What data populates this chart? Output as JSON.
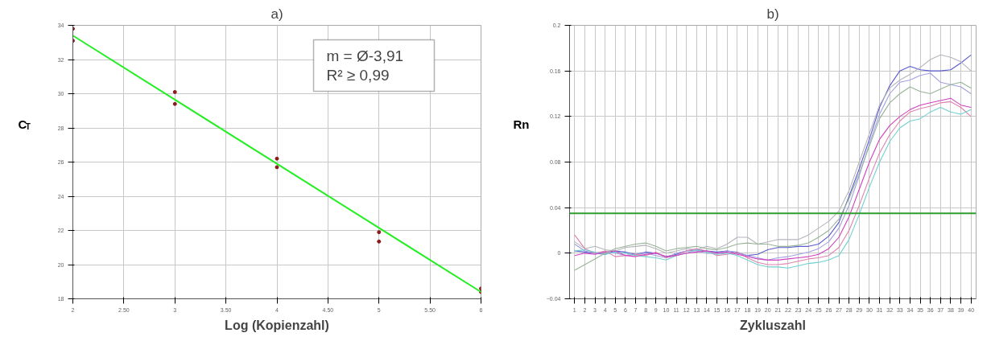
{
  "chart_data": [
    {
      "type": "scatter",
      "title": "a)",
      "xlabel": "Log (Kopienzahl)",
      "ylabel": "C$_{T}$",
      "xlim": [
        2,
        6
      ],
      "ylim": [
        18,
        34
      ],
      "xticks": [
        2,
        {
          "value": 2.5,
          "label": "2.50"
        },
        3,
        {
          "value": 3.5,
          "label": "3.50"
        },
        4,
        {
          "value": 4.5,
          "label": "4.50"
        },
        5,
        {
          "value": 5.5,
          "label": "5.50"
        },
        6
      ],
      "yticks": [
        18,
        20,
        22,
        24,
        26,
        28,
        30,
        32,
        34
      ],
      "grid": true,
      "marker": "circle",
      "annotations": [
        "m = Ø-3,91",
        "R² ≥ 0,99"
      ],
      "series": [
        {
          "type": "scatter",
          "color": "#8b1a1a",
          "x": [
            2,
            2,
            3,
            3,
            4,
            4,
            5,
            5,
            6,
            6
          ],
          "values": [
            33.8,
            33.1,
            30.1,
            29.4,
            26.2,
            25.7,
            21.9,
            21.35,
            18.6,
            18.4
          ]
        },
        {
          "type": "line",
          "color": "#22ee22",
          "marker": "none",
          "x": [
            2,
            6
          ],
          "values": [
            33.4,
            18.4
          ]
        }
      ]
    },
    {
      "type": "line",
      "title": "b)",
      "xlabel": "Zykluszahl",
      "ylabel": "Rn",
      "xlim": [
        0.5,
        40.5
      ],
      "ylim": [
        -0.04,
        0.2
      ],
      "xticks": [
        1,
        2,
        3,
        4,
        5,
        6,
        7,
        8,
        9,
        10,
        11,
        12,
        13,
        14,
        15,
        16,
        17,
        18,
        19,
        20,
        21,
        22,
        23,
        24,
        25,
        26,
        27,
        28,
        29,
        30,
        31,
        32,
        33,
        34,
        35,
        36,
        37,
        38,
        39,
        40
      ],
      "yticks": [
        -0.04,
        0,
        0.04,
        0.08,
        0.12,
        0.16,
        0.2
      ],
      "grid": true,
      "marker": "none",
      "ref_lines": [
        {
          "axis": "y",
          "value": 0.035,
          "color": "#2e9e2e"
        }
      ],
      "x": [
        1,
        2,
        3,
        4,
        5,
        6,
        7,
        8,
        9,
        10,
        11,
        12,
        13,
        14,
        15,
        16,
        17,
        18,
        19,
        20,
        21,
        22,
        23,
        24,
        25,
        26,
        27,
        28,
        29,
        30,
        31,
        32,
        33,
        34,
        35,
        36,
        37,
        38,
        39,
        40
      ],
      "series": [
        {
          "color": "#5b5bd0",
          "values": [
            0.002,
            0.001,
            0,
            -0.001,
            0.002,
            0.001,
            -0.001,
            0.001,
            0,
            -0.003,
            -0.001,
            0.002,
            0.003,
            0.002,
            0.001,
            0.002,
            0,
            -0.002,
            -0.001,
            0.003,
            0.005,
            0.005,
            0.006,
            0.006,
            0.008,
            0.015,
            0.027,
            0.05,
            0.074,
            0.1,
            0.128,
            0.147,
            0.16,
            0.164,
            0.161,
            0.16,
            0.16,
            0.161,
            0.167,
            0.174
          ]
        },
        {
          "color": "#b4b4bc",
          "values": [
            0.01,
            0.004,
            0.006,
            0.003,
            0.002,
            0.005,
            0.006,
            0.007,
            0.004,
            0,
            0.002,
            0.004,
            0.003,
            0.006,
            0.004,
            0.008,
            0.014,
            0.014,
            0.008,
            0.01,
            0.012,
            0.012,
            0.012,
            0.016,
            0.022,
            0.028,
            0.037,
            0.055,
            0.08,
            0.105,
            0.13,
            0.145,
            0.152,
            0.157,
            0.163,
            0.17,
            0.174,
            0.172,
            0.168,
            0.16
          ]
        },
        {
          "color": "#a0a0e0",
          "values": [
            0.008,
            0.002,
            0,
            0.001,
            0,
            -0.002,
            -0.001,
            0,
            -0.002,
            -0.004,
            0,
            0.002,
            0.002,
            0,
            0,
            0.002,
            0.001,
            -0.002,
            -0.004,
            -0.006,
            -0.004,
            -0.003,
            -0.001,
            0.001,
            0.004,
            0.01,
            0.022,
            0.042,
            0.068,
            0.096,
            0.122,
            0.14,
            0.15,
            0.152,
            0.156,
            0.158,
            0.15,
            0.148,
            0.146,
            0.14
          ]
        },
        {
          "color": "#e080b0",
          "values": [
            0.016,
            0.004,
            0,
            0.002,
            -0.003,
            -0.002,
            -0.001,
            -0.002,
            0.001,
            -0.004,
            -0.002,
            0.002,
            0.004,
            0.002,
            -0.002,
            -0.001,
            0.001,
            -0.004,
            -0.008,
            -0.01,
            -0.01,
            -0.009,
            -0.007,
            -0.005,
            -0.004,
            -0.002,
            0.005,
            0.02,
            0.042,
            0.066,
            0.088,
            0.104,
            0.116,
            0.124,
            0.127,
            0.129,
            0.132,
            0.133,
            0.128,
            0.12
          ]
        },
        {
          "color": "#70d0d0",
          "values": [
            0.002,
            0.003,
            0.001,
            -0.001,
            0.001,
            0,
            -0.002,
            -0.003,
            -0.004,
            -0.006,
            -0.002,
            0,
            0.003,
            0.001,
            -0.001,
            0,
            -0.002,
            -0.006,
            -0.01,
            -0.012,
            -0.012,
            -0.013,
            -0.011,
            -0.009,
            -0.008,
            -0.006,
            -0.002,
            0.012,
            0.034,
            0.058,
            0.08,
            0.098,
            0.11,
            0.116,
            0.118,
            0.124,
            0.128,
            0.124,
            0.122,
            0.126
          ]
        },
        {
          "color": "#d040c0",
          "values": [
            -0.002,
            0,
            -0.001,
            0.001,
            0.002,
            -0.002,
            -0.003,
            -0.001,
            0,
            -0.003,
            -0.002,
            0,
            0.001,
            0.002,
            0,
            0.001,
            -0.001,
            -0.003,
            -0.005,
            -0.006,
            -0.006,
            -0.005,
            -0.004,
            -0.003,
            -0.001,
            0.004,
            0.014,
            0.032,
            0.056,
            0.08,
            0.1,
            0.112,
            0.12,
            0.126,
            0.13,
            0.132,
            0.134,
            0.136,
            0.13,
            0.128
          ]
        },
        {
          "color": "#98b498",
          "values": [
            -0.015,
            -0.01,
            -0.005,
            0,
            0.004,
            0.006,
            0.008,
            0.009,
            0.006,
            0.002,
            0.004,
            0.005,
            0.006,
            0.004,
            0.003,
            0.005,
            0.008,
            0.009,
            0.008,
            0.008,
            0.006,
            0.006,
            0.007,
            0.009,
            0.014,
            0.02,
            0.03,
            0.048,
            0.07,
            0.094,
            0.118,
            0.132,
            0.14,
            0.146,
            0.142,
            0.14,
            0.144,
            0.148,
            0.15,
            0.145
          ]
        }
      ]
    }
  ]
}
